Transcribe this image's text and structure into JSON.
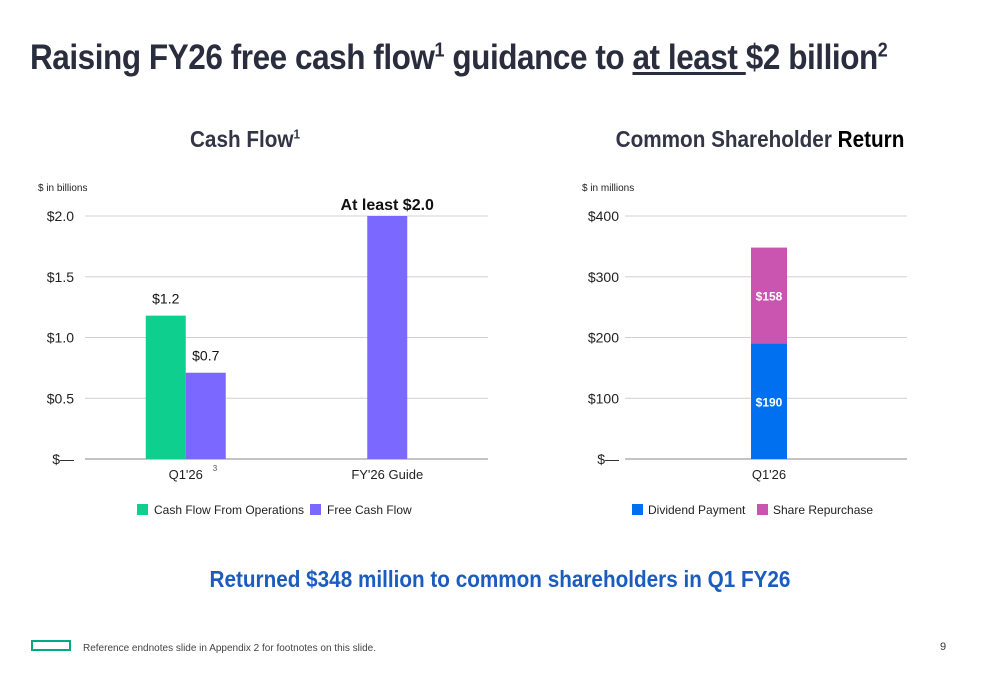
{
  "slide": {
    "title_before": "Raising FY26 free cash flow",
    "title_sup1": "1",
    "title_mid": " guidance to ",
    "title_underlined": "at least ",
    "title_after": "$2 billion",
    "title_sup2": "2",
    "banner": "Returned $348 million to common shareholders in Q1 FY26",
    "footer_note": "Reference endnotes slide in Appendix 2 for footnotes on this slide.",
    "page_number": "9"
  },
  "colors": {
    "cash_flow_from_operations": "#0fcf8e",
    "free_cash_flow": "#7a68ff",
    "dividend_payment": "#0070f0",
    "share_repurchase": "#c955b0",
    "grid": "#d0d0d0",
    "banner": "#1b5cc0"
  },
  "chart_data": [
    {
      "type": "bar",
      "title": "Cash Flow",
      "title_sup": "1",
      "unit_label": "$ in billions",
      "categories": [
        "Q1'26",
        "FY'26 Guide"
      ],
      "category_footnotes": [
        "3",
        ""
      ],
      "series": [
        {
          "name": "Cash Flow From Operations",
          "values": [
            1.18,
            null
          ]
        },
        {
          "name": "Free Cash Flow",
          "values": [
            0.71,
            2.0
          ]
        }
      ],
      "data_labels": [
        [
          "$1.2",
          ""
        ],
        [
          "$0.7",
          "At least $2.0"
        ]
      ],
      "y_ticks": [
        0,
        0.5,
        1.0,
        1.5,
        2.0
      ],
      "y_tick_labels": [
        "$—",
        "$0.5",
        "$1.0",
        "$1.5",
        "$2.0"
      ],
      "ylim": [
        0,
        2.0
      ],
      "grid": true,
      "legend_position": "bottom"
    },
    {
      "type": "bar",
      "stacked": true,
      "title_regular": "Common Shareholder",
      "title_bold": "Return",
      "unit_label": "$ in millions",
      "categories": [
        "Q1'26"
      ],
      "series": [
        {
          "name": "Dividend Payment",
          "values": [
            190
          ],
          "labels": [
            "$190"
          ]
        },
        {
          "name": "Share Repurchase",
          "values": [
            158
          ],
          "labels": [
            "$158"
          ]
        }
      ],
      "y_ticks": [
        0,
        100,
        200,
        300,
        400
      ],
      "y_tick_labels": [
        "$—",
        "$100",
        "$200",
        "$300",
        "$400"
      ],
      "ylim": [
        0,
        400
      ],
      "grid": true,
      "legend_position": "bottom"
    }
  ]
}
